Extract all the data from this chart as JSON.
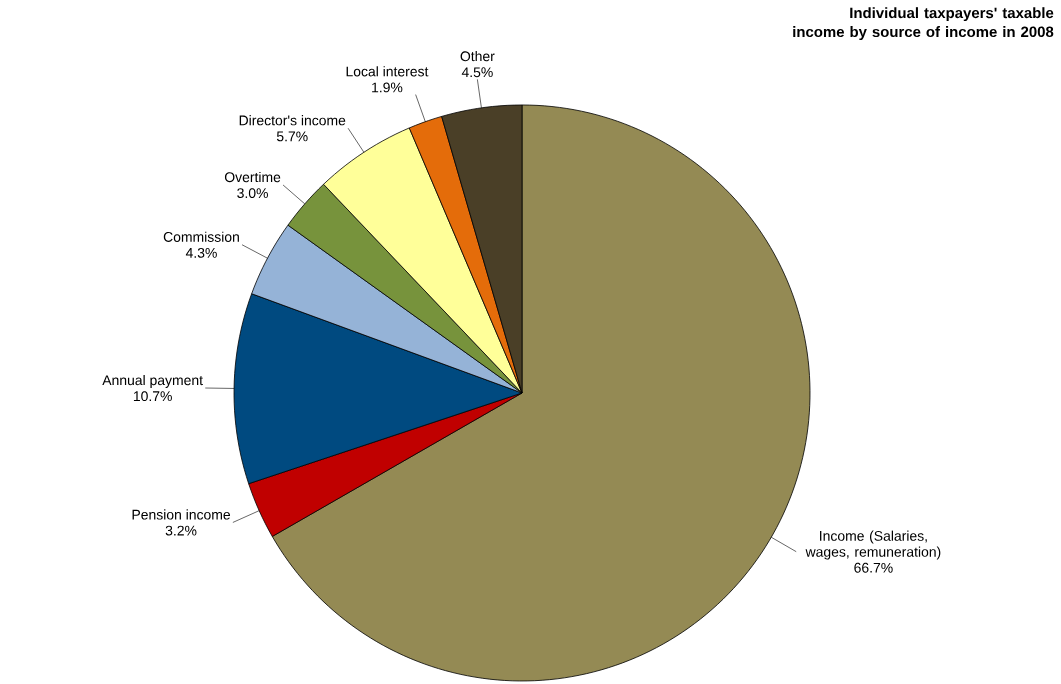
{
  "chart_data": {
    "type": "pie",
    "title": "Individual taxpayers' taxable income by source of income in 2008",
    "categories": [
      "Income (Salaries, wages, remuneration)",
      "Pension income",
      "Annual payment",
      "Commission",
      "Overtime",
      "Director's income",
      "Local interest",
      "Other"
    ],
    "values": [
      66.7,
      3.2,
      10.7,
      4.3,
      3.0,
      5.7,
      1.9,
      4.5
    ],
    "colors": [
      "#948a54",
      "#c00000",
      "#004a80",
      "#95b3d7",
      "#77933c",
      "#ffff99",
      "#e46c0a",
      "#4a3f27"
    ],
    "value_labels": [
      "66.7%",
      "3.2%",
      "10.7%",
      "4.3%",
      "3.0%",
      "5.7%",
      "1.9%",
      "4.5%"
    ]
  }
}
